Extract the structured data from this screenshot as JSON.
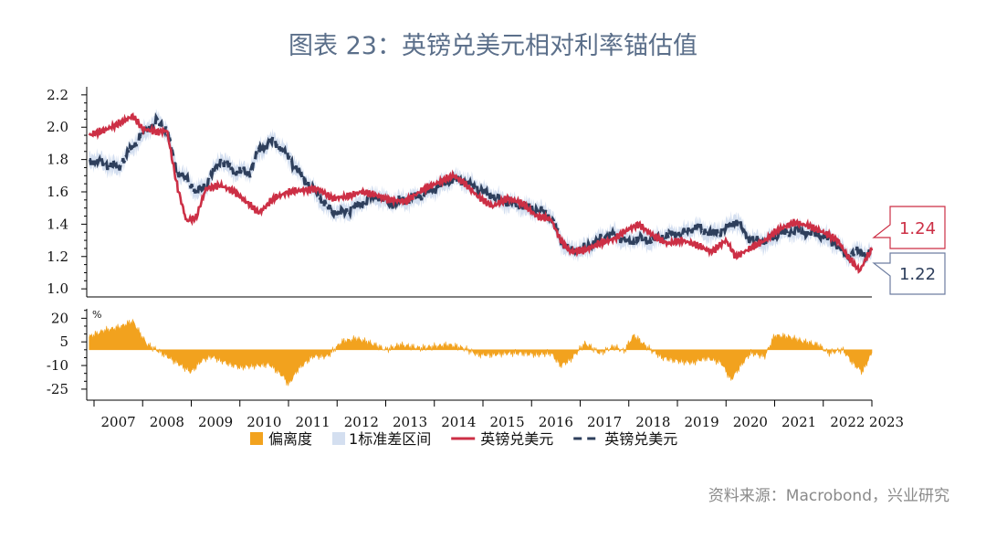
{
  "title": "图表 23：英镑兑美元相对利率锚估值",
  "source": "资料来源：Macrobond，兴业研究",
  "colors": {
    "actual": "#cc2f45",
    "model": "#2e3f5c",
    "band": "#d4dff0",
    "deviation": "#f2a21e",
    "axis": "#000000"
  },
  "legend": [
    {
      "label": "偏离度",
      "icon": "orange-square"
    },
    {
      "label": "1标准差区间",
      "icon": "lightblue-square"
    },
    {
      "label": "英镑兑美元",
      "icon": "red-solid-line"
    },
    {
      "label": "英镑兑美元",
      "icon": "navy-dashed-line"
    }
  ],
  "callouts": {
    "actual_latest": "1.24",
    "model_latest": "1.22"
  },
  "chart_data": [
    {
      "type": "line",
      "ylim": [
        0.95,
        2.25
      ],
      "yticks": [
        "1.0",
        "1.2",
        "1.4",
        "1.6",
        "1.8",
        "2.0",
        "2.2"
      ],
      "xlim": [
        2006.85,
        2023.0
      ],
      "x": [
        2006.9,
        2007.2,
        2007.5,
        2007.8,
        2008.0,
        2008.3,
        2008.5,
        2008.7,
        2008.9,
        2009.1,
        2009.3,
        2009.6,
        2009.9,
        2010.2,
        2010.4,
        2010.7,
        2011.0,
        2011.3,
        2011.6,
        2011.9,
        2012.2,
        2012.5,
        2012.8,
        2013.1,
        2013.4,
        2013.8,
        2014.1,
        2014.4,
        2014.6,
        2014.9,
        2015.2,
        2015.5,
        2015.8,
        2016.1,
        2016.4,
        2016.6,
        2016.8,
        2017.1,
        2017.4,
        2017.7,
        2018.0,
        2018.2,
        2018.5,
        2018.8,
        2019.1,
        2019.4,
        2019.7,
        2020.0,
        2020.2,
        2020.5,
        2020.8,
        2021.1,
        2021.4,
        2021.7,
        2022.0,
        2022.3,
        2022.5,
        2022.75,
        2022.9,
        2023.0
      ],
      "series": [
        {
          "values": [
            1.95,
            1.98,
            2.02,
            2.07,
            1.99,
            1.97,
            1.98,
            1.65,
            1.42,
            1.44,
            1.62,
            1.64,
            1.6,
            1.52,
            1.47,
            1.56,
            1.6,
            1.61,
            1.62,
            1.56,
            1.57,
            1.6,
            1.58,
            1.55,
            1.54,
            1.62,
            1.66,
            1.7,
            1.66,
            1.57,
            1.51,
            1.56,
            1.53,
            1.45,
            1.43,
            1.3,
            1.23,
            1.24,
            1.28,
            1.31,
            1.37,
            1.4,
            1.33,
            1.28,
            1.3,
            1.27,
            1.23,
            1.3,
            1.2,
            1.25,
            1.3,
            1.37,
            1.41,
            1.39,
            1.35,
            1.3,
            1.2,
            1.11,
            1.2,
            1.24
          ]
        },
        {
          "values": [
            1.8,
            1.78,
            1.75,
            1.88,
            1.96,
            2.04,
            1.98,
            1.72,
            1.68,
            1.6,
            1.64,
            1.8,
            1.73,
            1.72,
            1.86,
            1.92,
            1.82,
            1.68,
            1.58,
            1.47,
            1.48,
            1.53,
            1.58,
            1.53,
            1.55,
            1.58,
            1.64,
            1.68,
            1.67,
            1.62,
            1.57,
            1.53,
            1.51,
            1.49,
            1.45,
            1.3,
            1.23,
            1.25,
            1.31,
            1.34,
            1.29,
            1.31,
            1.3,
            1.33,
            1.34,
            1.38,
            1.34,
            1.37,
            1.43,
            1.3,
            1.29,
            1.34,
            1.36,
            1.35,
            1.33,
            1.27,
            1.2,
            1.24,
            1.2,
            1.22
          ]
        }
      ]
    },
    {
      "type": "area",
      "ylabel": "%",
      "ylim": [
        -32,
        26
      ],
      "yticks": [
        "20",
        "5",
        "-10",
        "-25"
      ],
      "x": [
        2006.9,
        2007.2,
        2007.5,
        2007.8,
        2007.95,
        2008.1,
        2008.4,
        2008.7,
        2009.0,
        2009.2,
        2009.4,
        2009.7,
        2010.0,
        2010.3,
        2010.6,
        2010.9,
        2011.0,
        2011.2,
        2011.5,
        2011.8,
        2012.1,
        2012.4,
        2012.7,
        2013.0,
        2013.3,
        2013.7,
        2014.0,
        2014.3,
        2014.6,
        2014.9,
        2015.2,
        2015.5,
        2015.8,
        2016.1,
        2016.4,
        2016.6,
        2016.8,
        2017.1,
        2017.4,
        2017.7,
        2017.9,
        2018.1,
        2018.4,
        2018.7,
        2019.0,
        2019.3,
        2019.6,
        2019.9,
        2020.1,
        2020.3,
        2020.5,
        2020.8,
        2021.0,
        2021.3,
        2021.6,
        2021.9,
        2022.1,
        2022.4,
        2022.6,
        2022.8,
        2023.0
      ],
      "values": [
        8,
        12,
        14,
        18,
        10,
        3,
        -2,
        -8,
        -14,
        -7,
        -4,
        -8,
        -11,
        -10,
        -9,
        -17,
        -22,
        -12,
        -4,
        -4,
        5,
        7,
        4,
        0,
        3,
        1,
        2,
        3,
        1,
        -3,
        -3,
        -2,
        -2,
        -3,
        -2,
        -10,
        -6,
        4,
        -2,
        2,
        -1,
        9,
        1,
        -5,
        -7,
        -8,
        -5,
        -8,
        -19,
        -10,
        -2,
        -4,
        9,
        8,
        5,
        3,
        -2,
        0,
        -8,
        -14,
        -2
      ]
    }
  ],
  "x_tick_labels": [
    "2007",
    "2008",
    "2009",
    "2010",
    "2011",
    "2012",
    "2013",
    "2014",
    "2015",
    "2016",
    "2017",
    "2018",
    "2019",
    "2020",
    "2021",
    "2022",
    "2023"
  ]
}
